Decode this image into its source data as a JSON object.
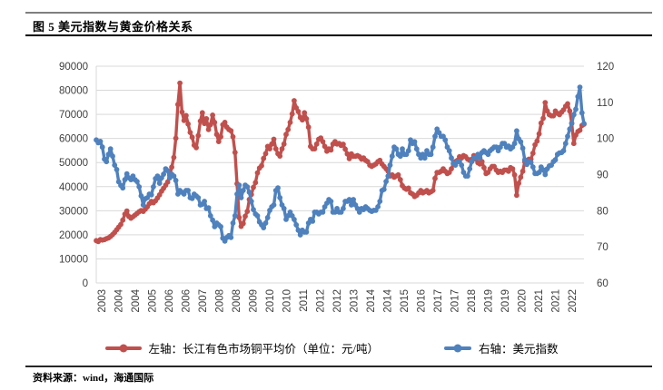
{
  "figure": {
    "title": "图 5 美元指数与黄金价格关系",
    "source": "资料来源：wind，海通国际"
  },
  "chart_data": {
    "type": "line",
    "title": "图 5 美元指数与黄金价格关系",
    "grid": true,
    "grid_color": "#d9d9d9",
    "axis_text_color": "#404040",
    "legend_position": "bottom",
    "x_range": [
      "2003-01",
      "2022-12"
    ],
    "x_labels": [
      "2003",
      "2004",
      "2004",
      "2005",
      "2006",
      "2006",
      "2007",
      "2008",
      "2008",
      "2009",
      "2010",
      "2010",
      "2011",
      "2012",
      "2012",
      "2013",
      "2014",
      "2014",
      "2015",
      "2016",
      "2017",
      "2017",
      "2018",
      "2019",
      "2019",
      "2020",
      "2021",
      "2021",
      "2022"
    ],
    "left_axis": {
      "min": 0,
      "max": 90000,
      "step": 10000,
      "ticks": [
        0,
        10000,
        20000,
        30000,
        40000,
        50000,
        60000,
        70000,
        80000,
        90000
      ]
    },
    "right_axis": {
      "min": 60,
      "max": 120,
      "step": 10,
      "ticks": [
        60,
        70,
        80,
        90,
        100,
        110,
        120
      ]
    },
    "series": [
      {
        "name": "左轴：长江有色市场铜平均价（单位：元/吨）",
        "axis": "left",
        "color": "#c0504d",
        "freq": "monthly",
        "values": [
          17600,
          17200,
          18000,
          17800,
          18000,
          18400,
          18700,
          19300,
          20100,
          21000,
          22100,
          23200,
          24300,
          26100,
          28600,
          29900,
          27600,
          26900,
          27500,
          28200,
          28900,
          29600,
          30100,
          29700,
          30600,
          31600,
          32900,
          33900,
          33300,
          34100,
          35300,
          36600,
          38100,
          39300,
          40600,
          41900,
          44600,
          48100,
          52100,
          60100,
          74100,
          83000,
          71000,
          67500,
          69500,
          66000,
          62500,
          60500,
          57200,
          56200,
          61200,
          67200,
          70700,
          66200,
          68200,
          63700,
          65700,
          69700,
          66700,
          61700,
          58700,
          60700,
          65700,
          66700,
          64700,
          63700,
          63200,
          60700,
          54200,
          41200,
          27200,
          23500,
          24700,
          27700,
          29700,
          34700,
          36700,
          39700,
          41700,
          45700,
          47700,
          48700,
          51700,
          53700,
          56700,
          55700,
          57700,
          59700,
          55700,
          53700,
          52700,
          55700,
          57700,
          61700,
          63700,
          66700,
          70200,
          75700,
          72700,
          71200,
          68700,
          67700,
          70700,
          68200,
          64700,
          56700,
          55700,
          55700,
          57700,
          59700,
          60200,
          58700,
          56700,
          54700,
          55700,
          55200,
          57700,
          58700,
          57700,
          57900,
          57100,
          57600,
          55600,
          53600,
          51600,
          53600,
          52600,
          52600,
          52900,
          52400,
          51400,
          51900,
          50900,
          50400,
          48900,
          48400,
          48900,
          49400,
          50400,
          50900,
          49400,
          48400,
          47400,
          46400,
          44400,
          44900,
          43900,
          44400,
          44900,
          42900,
          40400,
          39400,
          38900,
          39400,
          37400,
          36900,
          35900,
          36400,
          37400,
          38400,
          37400,
          37900,
          38400,
          37400,
          37900,
          38400,
          43400,
          45900,
          45900,
          46400,
          47400,
          46400,
          45400,
          45900,
          47400,
          49400,
          50400,
          50900,
          52400,
          51900,
          52900,
          52400,
          51400,
          50900,
          51400,
          52900,
          51400,
          49900,
          49400,
          50400,
          47900,
          45400,
          45900,
          47400,
          48400,
          48400,
          46900,
          45900,
          46400,
          45900,
          46900,
          46900,
          46400,
          47900,
          47400,
          44900,
          36400,
          41400,
          43900,
          46400,
          50400,
          50900,
          51400,
          51400,
          53900,
          57400,
          58900,
          61900,
          66400,
          68400,
          74900,
          71400,
          69900,
          69400,
          69400,
          71400,
          70400,
          69900,
          70900,
          71900,
          73400,
          74400,
          71400,
          66400,
          57900,
          61400,
          62900,
          63400,
          65400,
          65900
        ]
      },
      {
        "name": "右轴：美元指数",
        "axis": "right",
        "color": "#4f81bd",
        "freq": "monthly",
        "values": [
          99.6,
          98.8,
          99.2,
          97.6,
          94.3,
          93.6,
          95.6,
          97.1,
          95.1,
          92.6,
          91.4,
          88.0,
          87.0,
          86.3,
          88.6,
          90.2,
          89.1,
          88.6,
          89.6,
          88.6,
          88.1,
          86.6,
          84.1,
          81.6,
          83.3,
          83.6,
          84.6,
          84.4,
          86.6,
          88.9,
          89.6,
          87.6,
          89.1,
          90.1,
          91.6,
          91.1,
          89.1,
          90.1,
          89.6,
          88.4,
          84.6,
          85.6,
          85.1,
          84.6,
          85.6,
          85.6,
          83.6,
          83.4,
          84.6,
          84.1,
          83.6,
          81.6,
          81.8,
          82.6,
          80.6,
          80.8,
          78.6,
          77.4,
          75.6,
          76.6,
          76.1,
          75.6,
          72.4,
          71.6,
          72.6,
          73.1,
          72.6,
          76.6,
          78.6,
          84.6,
          87.1,
          83.6,
          85.6,
          87.1,
          86.6,
          85.1,
          82.6,
          80.3,
          79.1,
          78.6,
          76.9,
          76.1,
          75.3,
          76.6,
          78.1,
          80.1,
          81.1,
          81.6,
          85.6,
          86.3,
          83.6,
          81.6,
          80.6,
          77.6,
          78.6,
          79.6,
          78.6,
          77.6,
          76.1,
          74.6,
          73.3,
          74.6,
          74.1,
          74.1,
          76.6,
          77.6,
          77.1,
          79.6,
          79.6,
          79.1,
          79.6,
          79.6,
          81.1,
          82.1,
          83.1,
          82.6,
          79.6,
          79.6,
          80.6,
          79.6,
          79.6,
          80.6,
          82.6,
          82.6,
          83.1,
          81.6,
          83.1,
          81.6,
          80.6,
          79.6,
          80.6,
          80.3,
          81.1,
          80.6,
          80.1,
          79.8,
          80.1,
          80.1,
          81.1,
          82.6,
          85.6,
          85.9,
          88.1,
          89.6,
          92.6,
          95.1,
          97.6,
          97.1,
          95.6,
          95.1,
          97.1,
          95.6,
          95.6,
          96.6,
          99.6,
          98.6,
          99.1,
          97.1,
          95.6,
          94.6,
          95.6,
          94.6,
          96.6,
          95.6,
          95.6,
          97.6,
          100.6,
          102.6,
          101.6,
          100.6,
          100.6,
          99.6,
          97.6,
          96.6,
          94.6,
          93.1,
          92.6,
          93.6,
          93.6,
          92.6,
          90.6,
          89.6,
          89.6,
          91.6,
          93.6,
          94.6,
          94.6,
          95.6,
          94.6,
          96.1,
          96.6,
          96.1,
          95.6,
          96.6,
          97.1,
          97.6,
          97.6,
          96.6,
          97.6,
          98.6,
          98.6,
          97.6,
          97.9,
          97.1,
          97.6,
          98.6,
          102.1,
          99.9,
          99.1,
          97.3,
          94.1,
          92.8,
          93.6,
          93.4,
          92.1,
          90.3,
          90.3,
          90.6,
          92.1,
          91.3,
          90.0,
          91.6,
          92.4,
          92.6,
          93.6,
          94.1,
          95.6,
          96.0,
          96.1,
          96.6,
          98.6,
          100.6,
          102.6,
          104.1,
          106.6,
          108.1,
          111.6,
          114.2,
          107.1,
          104.1
        ]
      }
    ]
  }
}
